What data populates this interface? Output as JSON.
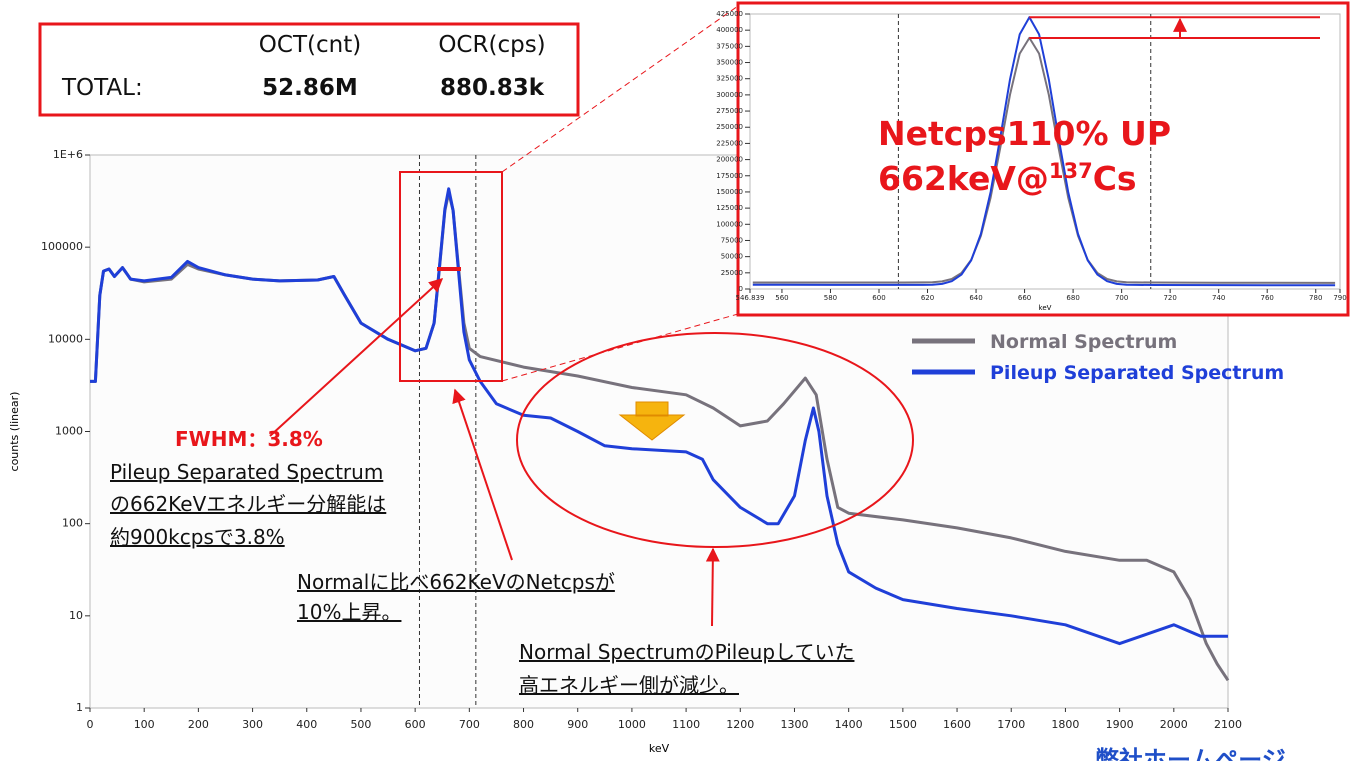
{
  "stats": {
    "headers": [
      "OCT(cnt)",
      "OCR(cps)"
    ],
    "row_label": "TOTAL:",
    "row_values": [
      "52.86M",
      "880.83k"
    ]
  },
  "footer": "弊社ホームページ",
  "chart_data": [
    {
      "type": "line",
      "xlabel": "keV",
      "ylabel": "counts (linear)",
      "log_y": true,
      "xlim": [
        0,
        2100
      ],
      "ylim": [
        1,
        1000000
      ],
      "xticks": [
        0,
        100,
        200,
        300,
        400,
        500,
        600,
        700,
        800,
        900,
        1000,
        1100,
        1200,
        1300,
        1400,
        1500,
        1600,
        1700,
        1800,
        1900,
        2000,
        2100
      ],
      "yticks": [
        1,
        10,
        100,
        1000,
        10000,
        100000,
        {
          "value": 1000000,
          "label": "1E+6"
        }
      ],
      "markers": [
        608,
        712
      ],
      "series": [
        {
          "name": "Normal Spectrum",
          "color": "#77727c",
          "x": [
            0,
            10,
            18,
            25,
            35,
            45,
            60,
            75,
            100,
            150,
            180,
            200,
            250,
            300,
            350,
            420,
            450,
            470,
            500,
            550,
            600,
            620,
            635,
            645,
            655,
            662,
            670,
            680,
            690,
            700,
            720,
            800,
            900,
            1000,
            1100,
            1150,
            1200,
            1250,
            1280,
            1320,
            1340,
            1360,
            1380,
            1400,
            1500,
            1600,
            1700,
            1800,
            1900,
            1950,
            2000,
            2030,
            2060,
            2080,
            2100
          ],
          "values": [
            3500,
            3500,
            30000,
            55000,
            58000,
            48000,
            60000,
            45000,
            42000,
            45000,
            65000,
            58000,
            50000,
            45000,
            43000,
            44000,
            48000,
            30000,
            15000,
            10000,
            7500,
            8000,
            15000,
            60000,
            250000,
            390000,
            250000,
            60000,
            15000,
            8000,
            6500,
            5000,
            4000,
            3000,
            2500,
            1800,
            1150,
            1300,
            2000,
            3800,
            2500,
            500,
            150,
            130,
            110,
            90,
            70,
            50,
            40,
            40,
            30,
            15,
            5,
            3,
            2
          ]
        },
        {
          "name": "Pileup Separated Spectrum",
          "color": "#1f3fd8",
          "x": [
            0,
            10,
            18,
            25,
            35,
            45,
            60,
            75,
            100,
            150,
            180,
            200,
            250,
            300,
            350,
            420,
            450,
            470,
            500,
            550,
            600,
            620,
            635,
            645,
            655,
            662,
            670,
            680,
            690,
            700,
            720,
            750,
            800,
            850,
            900,
            950,
            1000,
            1100,
            1130,
            1150,
            1200,
            1250,
            1270,
            1300,
            1320,
            1335,
            1345,
            1360,
            1380,
            1400,
            1450,
            1500,
            1600,
            1700,
            1800,
            1900,
            2000,
            2050,
            2100
          ],
          "values": [
            3500,
            3500,
            30000,
            55000,
            58000,
            48000,
            60000,
            45000,
            43000,
            47000,
            70000,
            60000,
            50000,
            45000,
            43000,
            44000,
            48000,
            30000,
            15000,
            10000,
            7500,
            8000,
            15000,
            62000,
            260000,
            430000,
            250000,
            55000,
            12000,
            6000,
            3500,
            2000,
            1500,
            1400,
            1000,
            700,
            650,
            600,
            500,
            300,
            150,
            100,
            100,
            200,
            800,
            1800,
            1000,
            200,
            60,
            30,
            20,
            15,
            12,
            10,
            8,
            5,
            8,
            6,
            6
          ]
        }
      ],
      "annotations": {
        "fwhm": "FWHM：3.8%",
        "resolution": [
          "Pileup Separated Spectrum",
          "の662KeVエネルギー分解能は",
          "約900kcpsで3.8%"
        ],
        "netcps": [
          "Normalに比べ662KeVのNetcpsが",
          "10%上昇。"
        ],
        "reduction": [
          "Normal SpectrumのPileupしていた",
          "高エネルギー側が減少。"
        ]
      }
    },
    {
      "type": "line",
      "xlabel": "keV",
      "xlim": [
        546.839,
        790
      ],
      "ylim": [
        0,
        425000
      ],
      "xticks": [
        546.839,
        560,
        580,
        600,
        620,
        640,
        660,
        680,
        700,
        720,
        740,
        760,
        780,
        790
      ],
      "yticks": [
        0,
        25000,
        50000,
        75000,
        100000,
        125000,
        150000,
        175000,
        200000,
        225000,
        250000,
        275000,
        300000,
        325000,
        350000,
        375000,
        400000,
        425000
      ],
      "markers": [
        608,
        712
      ],
      "peak_lines": [
        420000,
        388000
      ],
      "series": [
        {
          "name": "Normal Spectrum",
          "color": "#77727c",
          "x": [
            548,
            560,
            580,
            600,
            610,
            618,
            622,
            626,
            630,
            634,
            638,
            642,
            646,
            650,
            654,
            658,
            662,
            666,
            670,
            674,
            678,
            682,
            686,
            690,
            694,
            698,
            702,
            706,
            714,
            740,
            760,
            788
          ],
          "values": [
            10000,
            10000,
            10000,
            10000,
            10000,
            10200,
            10500,
            11800,
            15500,
            24800,
            45000,
            82200,
            141200,
            218700,
            300300,
            363800,
            388000,
            363800,
            300300,
            218700,
            141200,
            82200,
            45000,
            24800,
            15500,
            11800,
            10500,
            10200,
            10000,
            9800,
            9600,
            9500
          ]
        },
        {
          "name": "Pileup Separated Spectrum",
          "color": "#1f3fd8",
          "x": [
            548,
            560,
            580,
            600,
            610,
            618,
            622,
            626,
            630,
            634,
            638,
            642,
            646,
            650,
            654,
            658,
            662,
            666,
            670,
            674,
            678,
            682,
            686,
            690,
            694,
            698,
            702,
            706,
            714,
            740,
            760,
            788
          ],
          "values": [
            6500,
            6500,
            6400,
            6300,
            6300,
            6400,
            6600,
            7900,
            12000,
            22200,
            44300,
            85100,
            149700,
            234500,
            324000,
            393500,
            420000,
            393500,
            324000,
            234500,
            149700,
            85100,
            44300,
            22200,
            12000,
            7900,
            6600,
            6400,
            6200,
            6000,
            5900,
            5800
          ]
        }
      ],
      "annotations": {
        "headline": "Netcps110% UP",
        "source": {
          "text": "662keV@",
          "sup": "137",
          "after": "Cs"
        }
      }
    }
  ]
}
